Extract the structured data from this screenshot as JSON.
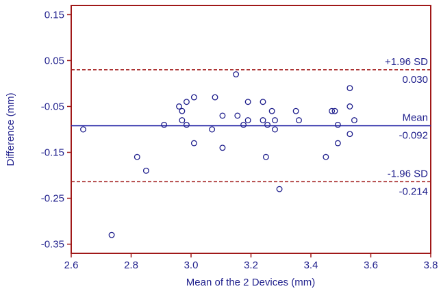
{
  "chart_data": {
    "type": "scatter",
    "xlabel": "Mean of the 2 Devices (mm)",
    "ylabel": "Difference (mm)",
    "xlim": [
      2.6,
      3.8
    ],
    "ylim": [
      -0.37,
      0.17
    ],
    "x_ticks": [
      "2.6",
      "2.8",
      "3.0",
      "3.2",
      "3.4",
      "3.6",
      "3.8"
    ],
    "y_ticks": [
      "0.15",
      "0.05",
      "-0.05",
      "-0.15",
      "-0.25",
      "-0.35"
    ],
    "x_tick_values": [
      2.6,
      2.8,
      3.0,
      3.2,
      3.4,
      3.6,
      3.8
    ],
    "y_tick_values": [
      0.15,
      0.05,
      -0.05,
      -0.15,
      -0.25,
      -0.35
    ],
    "grid": false,
    "colors": {
      "axis": "#a01818",
      "points": "#1f1f8c",
      "mean_line": "#2a2aa8",
      "limit_lines": "#a01818",
      "text": "#1f1f8c"
    },
    "reference_lines": [
      {
        "name": "upper",
        "label": "+1.96 SD",
        "value_label": "0.030",
        "y": 0.03,
        "style": "dashed"
      },
      {
        "name": "mean",
        "label": "Mean",
        "value_label": "-0.092",
        "y": -0.092,
        "style": "solid"
      },
      {
        "name": "lower",
        "label": "-1.96 SD",
        "value_label": "-0.214",
        "y": -0.214,
        "style": "dashed"
      }
    ],
    "points": [
      {
        "x": 2.64,
        "y": -0.1
      },
      {
        "x": 2.735,
        "y": -0.33
      },
      {
        "x": 2.82,
        "y": -0.16
      },
      {
        "x": 2.85,
        "y": -0.19
      },
      {
        "x": 2.91,
        "y": -0.09
      },
      {
        "x": 2.96,
        "y": -0.05
      },
      {
        "x": 2.97,
        "y": -0.06
      },
      {
        "x": 2.97,
        "y": -0.08
      },
      {
        "x": 2.985,
        "y": -0.04
      },
      {
        "x": 2.985,
        "y": -0.09
      },
      {
        "x": 3.01,
        "y": -0.03
      },
      {
        "x": 3.01,
        "y": -0.13
      },
      {
        "x": 3.07,
        "y": -0.1
      },
      {
        "x": 3.08,
        "y": -0.03
      },
      {
        "x": 3.105,
        "y": -0.07
      },
      {
        "x": 3.105,
        "y": -0.14
      },
      {
        "x": 3.15,
        "y": 0.02
      },
      {
        "x": 3.155,
        "y": -0.07
      },
      {
        "x": 3.175,
        "y": -0.09
      },
      {
        "x": 3.19,
        "y": -0.04
      },
      {
        "x": 3.19,
        "y": -0.08
      },
      {
        "x": 3.24,
        "y": -0.04
      },
      {
        "x": 3.24,
        "y": -0.08
      },
      {
        "x": 3.25,
        "y": -0.16
      },
      {
        "x": 3.255,
        "y": -0.09
      },
      {
        "x": 3.27,
        "y": -0.06
      },
      {
        "x": 3.28,
        "y": -0.08
      },
      {
        "x": 3.28,
        "y": -0.1
      },
      {
        "x": 3.295,
        "y": -0.23
      },
      {
        "x": 3.35,
        "y": -0.06
      },
      {
        "x": 3.36,
        "y": -0.08
      },
      {
        "x": 3.45,
        "y": -0.16
      },
      {
        "x": 3.47,
        "y": -0.06
      },
      {
        "x": 3.48,
        "y": -0.06
      },
      {
        "x": 3.49,
        "y": -0.09
      },
      {
        "x": 3.49,
        "y": -0.13
      },
      {
        "x": 3.53,
        "y": -0.01
      },
      {
        "x": 3.53,
        "y": -0.05
      },
      {
        "x": 3.53,
        "y": -0.11
      },
      {
        "x": 3.545,
        "y": -0.08
      }
    ]
  }
}
